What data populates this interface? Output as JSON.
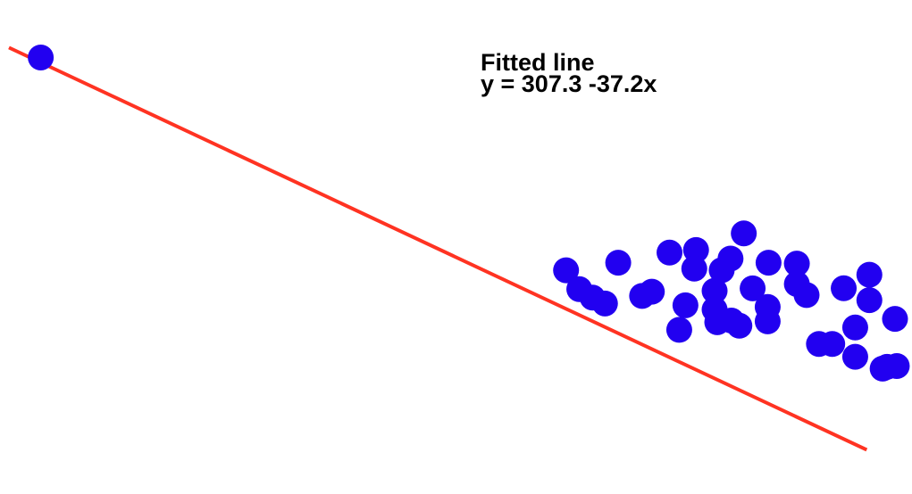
{
  "chart_data": {
    "type": "scatter",
    "annotation": {
      "title": "Fitted line",
      "equation": "y = 307.3 -37.2x"
    },
    "fit": {
      "intercept": 307.3,
      "slope": -37.2
    },
    "xlim": [
      0,
      10
    ],
    "ylim": [
      -82,
      334
    ],
    "axes_visible": false,
    "grid": false,
    "colors": {
      "points": "#2200f0",
      "fit_line": "#ff3322"
    },
    "points": [
      {
        "x": 0.36,
        "y": 298.4
      },
      {
        "x": 6.3,
        "y": 107.5
      },
      {
        "x": 6.45,
        "y": 90.6
      },
      {
        "x": 6.6,
        "y": 83.0
      },
      {
        "x": 6.74,
        "y": 77.7
      },
      {
        "x": 6.89,
        "y": 114.3
      },
      {
        "x": 7.16,
        "y": 84.5
      },
      {
        "x": 7.27,
        "y": 88.3
      },
      {
        "x": 7.47,
        "y": 123.4
      },
      {
        "x": 7.65,
        "y": 76.1
      },
      {
        "x": 7.58,
        "y": 54.1
      },
      {
        "x": 7.77,
        "y": 125.7
      },
      {
        "x": 7.75,
        "y": 109.0
      },
      {
        "x": 7.98,
        "y": 89.1
      },
      {
        "x": 7.98,
        "y": 72.3
      },
      {
        "x": 8.01,
        "y": 60.9
      },
      {
        "x": 8.06,
        "y": 107.6
      },
      {
        "x": 8.16,
        "y": 118.0
      },
      {
        "x": 8.17,
        "y": 62.4
      },
      {
        "x": 8.31,
        "y": 140.6
      },
      {
        "x": 8.26,
        "y": 57.8
      },
      {
        "x": 8.41,
        "y": 91.3
      },
      {
        "x": 8.58,
        "y": 74.6
      },
      {
        "x": 8.58,
        "y": 61.7
      },
      {
        "x": 8.59,
        "y": 114.3
      },
      {
        "x": 8.91,
        "y": 113.5
      },
      {
        "x": 8.91,
        "y": 95.2
      },
      {
        "x": 9.02,
        "y": 85.3
      },
      {
        "x": 9.16,
        "y": 41.4
      },
      {
        "x": 9.31,
        "y": 41.4
      },
      {
        "x": 9.44,
        "y": 91.4
      },
      {
        "x": 9.57,
        "y": 56.2
      },
      {
        "x": 9.57,
        "y": 29.9
      },
      {
        "x": 9.73,
        "y": 103.5
      },
      {
        "x": 9.73,
        "y": 80.7
      },
      {
        "x": 9.88,
        "y": 19.3
      },
      {
        "x": 9.93,
        "y": 20.9
      },
      {
        "x": 10.02,
        "y": 63.9
      },
      {
        "x": 10.04,
        "y": 21.6
      }
    ]
  }
}
